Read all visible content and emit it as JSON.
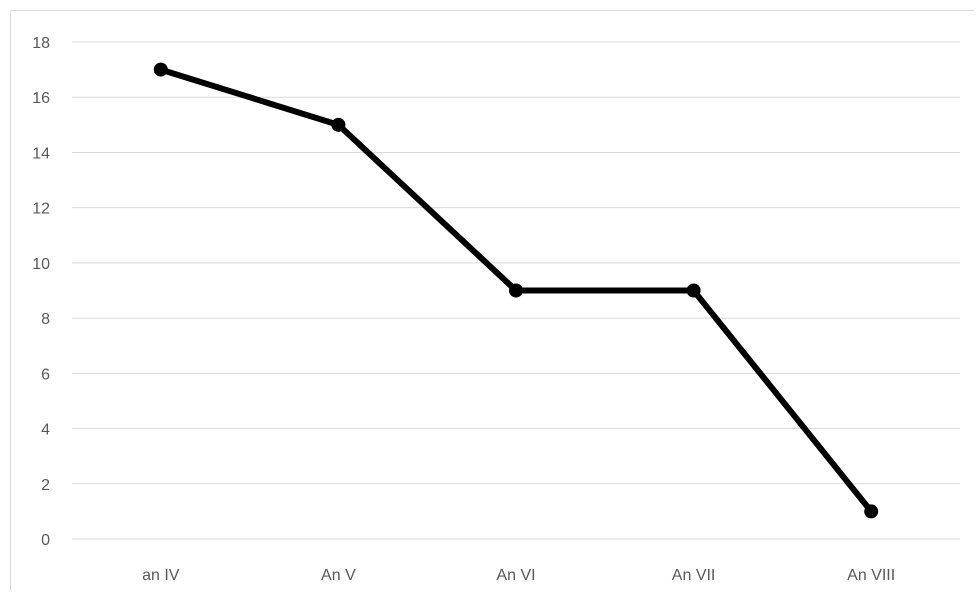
{
  "chart_data": {
    "type": "line",
    "title": "",
    "xlabel": "",
    "ylabel": "",
    "categories": [
      "an IV",
      "An V",
      "An VI",
      "An VII",
      "An VIII"
    ],
    "series": [
      {
        "values": [
          17,
          15,
          9,
          9,
          1
        ],
        "color": "#000000"
      }
    ],
    "ylim": [
      0,
      18
    ],
    "ytick_step": 2,
    "yticks": [
      0,
      2,
      4,
      6,
      8,
      10,
      12,
      14,
      16,
      18
    ],
    "grid": true,
    "legend": "none",
    "markers": true
  }
}
